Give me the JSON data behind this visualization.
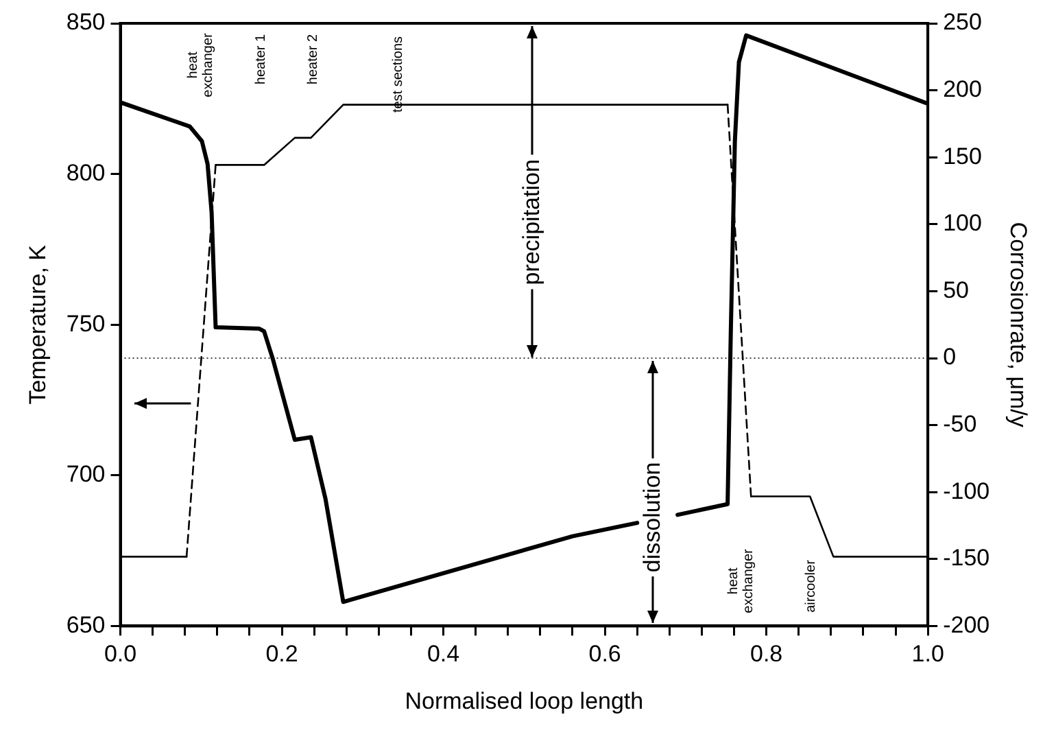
{
  "chart_data": {
    "type": "line",
    "xlabel": "Normalised loop length",
    "ylabel": "Temperature, K",
    "y2label": "Corrosionrate, μm/y",
    "xlim": [
      0,
      1
    ],
    "xticks": [
      {
        "value": 0,
        "label": "0.0"
      },
      {
        "value": 0.04,
        "label": null
      },
      {
        "value": 0.08,
        "label": null
      },
      {
        "value": 0.12,
        "label": null
      },
      {
        "value": 0.16,
        "label": null
      },
      0.2,
      {
        "value": 0.24,
        "label": null
      },
      {
        "value": 0.28,
        "label": null
      },
      {
        "value": 0.32,
        "label": null
      },
      {
        "value": 0.36,
        "label": null
      },
      0.4,
      {
        "value": 0.44,
        "label": null
      },
      {
        "value": 0.48,
        "label": null
      },
      {
        "value": 0.52,
        "label": null
      },
      {
        "value": 0.56,
        "label": null
      },
      0.6,
      {
        "value": 0.64,
        "label": null
      },
      {
        "value": 0.68,
        "label": null
      },
      {
        "value": 0.72,
        "label": null
      },
      {
        "value": 0.76,
        "label": null
      },
      0.8,
      {
        "value": 0.84,
        "label": null
      },
      {
        "value": 0.88,
        "label": null
      },
      {
        "value": 0.92,
        "label": null
      },
      {
        "value": 0.96,
        "label": null
      },
      {
        "value": 1,
        "label": "1.0"
      }
    ],
    "ylim": [
      650,
      850
    ],
    "yticks": [
      650,
      700,
      750,
      800,
      850
    ],
    "y2lim": [
      -200,
      250
    ],
    "y2ticks": [
      -200,
      -150,
      -100,
      -50,
      0,
      50,
      100,
      150,
      200,
      250
    ],
    "series": [
      {
        "color": "#000000",
        "line_style": "solid",
        "x": [
          0,
          0.082
        ],
        "values": [
          673,
          673
        ]
      },
      {
        "color": "#000000",
        "line_style": "dashed",
        "x": [
          0.082,
          0.118
        ],
        "values": [
          673,
          803
        ]
      },
      {
        "color": "#000000",
        "line_style": "solid",
        "x": [
          0.118,
          0.178,
          0.216,
          0.236,
          0.276,
          0.752
        ],
        "values": [
          803,
          803,
          812,
          812,
          823,
          823
        ]
      },
      {
        "color": "#000000",
        "line_style": "dashed",
        "x": [
          0.752,
          0.781
        ],
        "values": [
          823,
          693
        ]
      },
      {
        "color": "#000000",
        "line_style": "solid",
        "x": [
          0.781,
          0.854,
          0.883,
          1
        ],
        "values": [
          693,
          693,
          673,
          673
        ]
      },
      {
        "color": "#000000",
        "line_style": "solid",
        "axis": "y2",
        "x": [
          0,
          0.086,
          0.101,
          0.108,
          0.113,
          0.116,
          0.118,
          0.172,
          0.178,
          0.189,
          0.216,
          0.236,
          0.254,
          0.276,
          0.56,
          0.64
        ],
        "values": [
          191,
          173,
          162,
          145,
          109,
          57,
          23,
          22,
          20,
          -1,
          -61,
          -59,
          -105,
          -182,
          -133,
          -123
        ]
      },
      {
        "color": "#000000",
        "line_style": "solid",
        "axis": "y2",
        "x": [
          0.69,
          0.752,
          0.756,
          0.761,
          0.766,
          0.775,
          1
        ],
        "values": [
          -117,
          -109,
          21,
          162,
          221,
          241,
          190
        ]
      }
    ],
    "ref_lines": [
      {
        "axis": "y2",
        "value": 0,
        "color": "#000000",
        "line_style": "dotted"
      }
    ],
    "annotations": [
      "heat exchanger",
      "heater 1",
      "heater 2",
      "test sections",
      "heat exchanger",
      "aircooler",
      "precipitation",
      "dissolution"
    ],
    "grid": false,
    "legend": false,
    "marker": "none"
  }
}
